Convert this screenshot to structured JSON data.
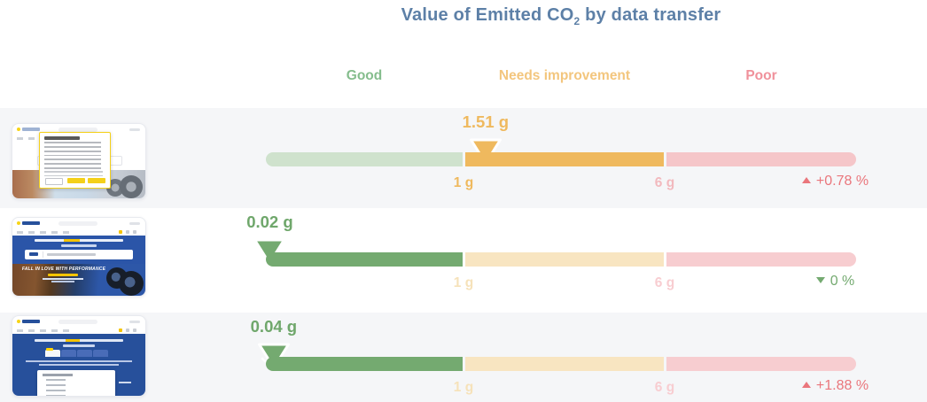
{
  "header": {
    "title_pre": "Value of Emitted CO",
    "title_sub": "2",
    "title_post": " by data transfer"
  },
  "colors": {
    "title": "#5d80a7",
    "good_active": "#74aa70",
    "good_inactive": "#cfe2cd",
    "needs_improvement_active": "#efb95e",
    "needs_improvement_inactive": "#f8e5c1",
    "poor_inactive": "#f5c6c9",
    "good_label": "#85bd8d",
    "needs_improvement_label": "#f3c67e",
    "poor_label": "#f0919b",
    "delta_bad": "#ea767c",
    "delta_good": "#74aa70",
    "row_stripe": "#f5f6f8"
  },
  "thumbnails": {
    "hero_text": "FALL IN LOVE WITH PERFORMANCE"
  },
  "chart_data": {
    "type": "bar",
    "variant": "bullet-gauge-rows",
    "title": "Value of Emitted CO2 by data transfer",
    "unit": "g",
    "zones": [
      {
        "label": "Good",
        "from_g": 0,
        "to_g": 1
      },
      {
        "label": "Needs improvement",
        "from_g": 1,
        "to_g": 6
      },
      {
        "label": "Poor",
        "from_g": 6,
        "to_g": 11
      }
    ],
    "tick_labels": [
      "1 g",
      "6 g"
    ],
    "legend_position": "top",
    "rows": [
      {
        "page": "cookie-consent-overlay-page",
        "value_g": 1.51,
        "value_label": "1.51 g",
        "zone": "Needs improvement",
        "delta_label": "+0.78 %",
        "delta_direction": "up",
        "delta_sentiment": "bad"
      },
      {
        "page": "homepage-hero-page",
        "value_g": 0.02,
        "value_label": "0.02 g",
        "zone": "Good",
        "delta_label": "0 %",
        "delta_direction": "down",
        "delta_sentiment": "good"
      },
      {
        "page": "tire-selector-page",
        "value_g": 0.04,
        "value_label": "0.04 g",
        "zone": "Good",
        "delta_label": "+1.88 %",
        "delta_direction": "up",
        "delta_sentiment": "bad"
      }
    ]
  }
}
